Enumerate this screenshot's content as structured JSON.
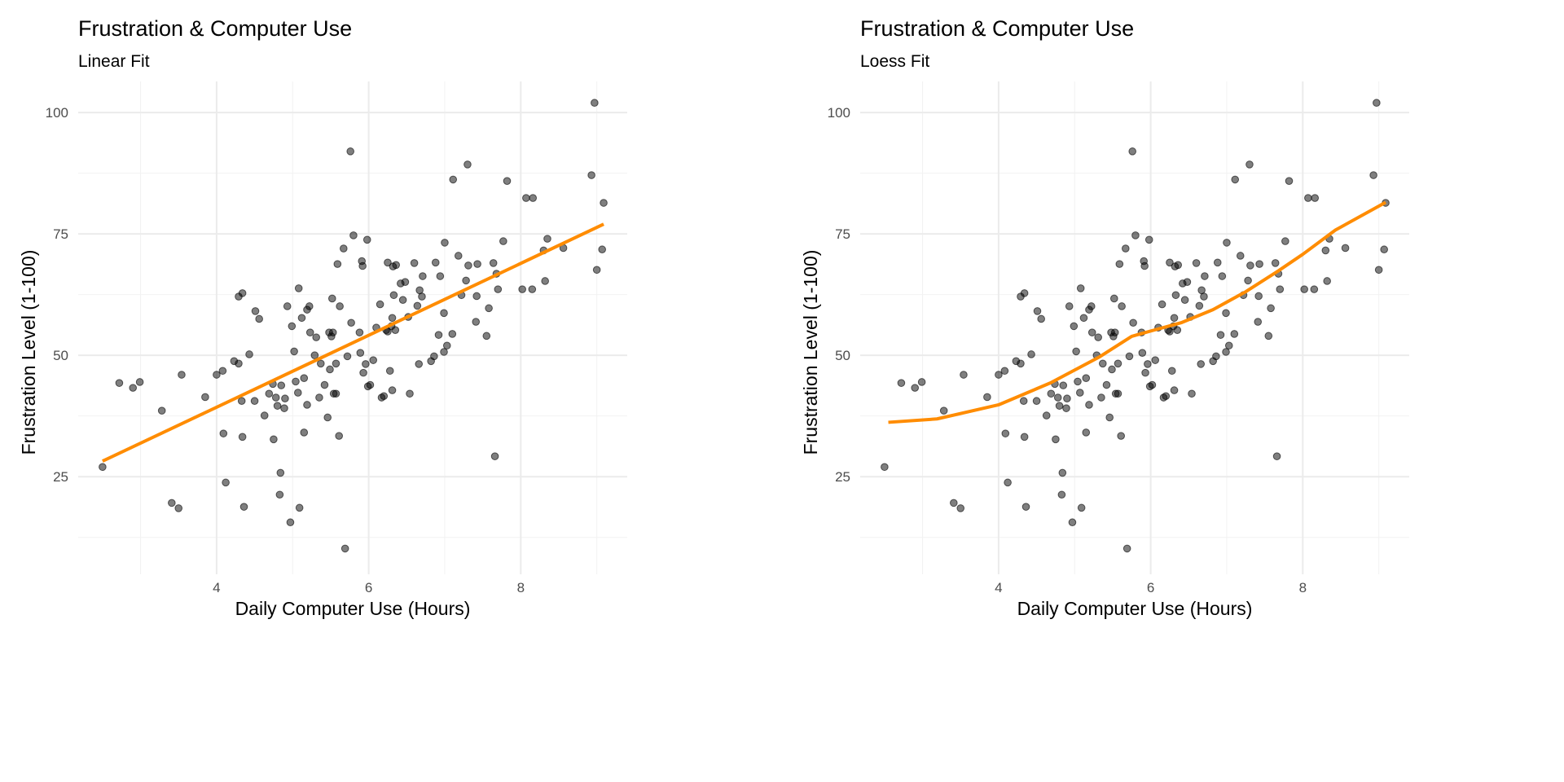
{
  "chart_data": [
    {
      "type": "scatter",
      "title": "Frustration & Computer Use",
      "subtitle": "Linear Fit",
      "xlabel": "Daily Computer Use (Hours)",
      "ylabel": "Frustration Level (1-100)",
      "xlim": [
        2.18,
        9.4
      ],
      "ylim": [
        4.9,
        106.4
      ],
      "xticks": [
        4,
        6,
        8
      ],
      "xtick_labels": [
        "4",
        "6",
        "8"
      ],
      "yticks": [
        25,
        50,
        75,
        100
      ],
      "ytick_labels": [
        "25",
        "50",
        "75",
        "100"
      ],
      "grid": true,
      "fit": {
        "method": "linear",
        "color": "#FF8C00",
        "x": [
          2.5,
          9.09
        ],
        "y": [
          28.2,
          77.0
        ]
      }
    },
    {
      "type": "scatter",
      "title": "Frustration & Computer Use",
      "subtitle": "Loess Fit",
      "xlabel": "Daily Computer Use (Hours)",
      "ylabel": "Frustration Level (1-100)",
      "xlim": [
        2.18,
        9.4
      ],
      "ylim": [
        4.9,
        106.4
      ],
      "xticks": [
        4,
        6,
        8
      ],
      "xtick_labels": [
        "4",
        "6",
        "8"
      ],
      "yticks": [
        25,
        50,
        75,
        100
      ],
      "ytick_labels": [
        "25",
        "50",
        "75",
        "100"
      ],
      "grid": true,
      "fit": {
        "method": "loess",
        "color": "#FF8C00",
        "x": [
          2.55,
          3.19,
          4.0,
          4.68,
          5.33,
          5.75,
          6.0,
          6.4,
          6.82,
          7.25,
          7.68,
          8.0,
          8.43,
          9.09
        ],
        "y": [
          36.2,
          36.9,
          39.8,
          44.3,
          49.7,
          53.9,
          55.0,
          56.7,
          59.4,
          63.1,
          67.4,
          70.8,
          75.8,
          81.5
        ]
      }
    }
  ],
  "points": [
    [
      2.5,
      27
    ],
    [
      2.72,
      44.3
    ],
    [
      2.9,
      43.3
    ],
    [
      2.99,
      44.5
    ],
    [
      3.28,
      38.6
    ],
    [
      3.41,
      19.6
    ],
    [
      3.5,
      18.5
    ],
    [
      3.54,
      46
    ],
    [
      3.85,
      41.4
    ],
    [
      4.0,
      46
    ],
    [
      4.08,
      46.8
    ],
    [
      4.09,
      33.9
    ],
    [
      4.12,
      23.8
    ],
    [
      4.23,
      48.8
    ],
    [
      4.29,
      48.3
    ],
    [
      4.29,
      62.1
    ],
    [
      4.34,
      62.8
    ],
    [
      4.33,
      40.6
    ],
    [
      4.34,
      33.2
    ],
    [
      4.36,
      18.8
    ],
    [
      4.43,
      50.2
    ],
    [
      4.5,
      40.6
    ],
    [
      4.51,
      59.1
    ],
    [
      4.56,
      57.5
    ],
    [
      4.63,
      37.6
    ],
    [
      4.69,
      42.1
    ],
    [
      4.74,
      44.1
    ],
    [
      4.75,
      32.7
    ],
    [
      4.78,
      41.3
    ],
    [
      4.8,
      39.6
    ],
    [
      4.83,
      21.3
    ],
    [
      4.84,
      25.8
    ],
    [
      4.85,
      43.8
    ],
    [
      4.89,
      39.1
    ],
    [
      4.9,
      41.1
    ],
    [
      4.93,
      60.1
    ],
    [
      4.97,
      15.6
    ],
    [
      4.99,
      56
    ],
    [
      5.02,
      50.8
    ],
    [
      5.04,
      44.6
    ],
    [
      5.07,
      42.3
    ],
    [
      5.08,
      63.8
    ],
    [
      5.09,
      18.6
    ],
    [
      5.12,
      57.7
    ],
    [
      5.15,
      45.3
    ],
    [
      5.15,
      34.1
    ],
    [
      5.19,
      39.8
    ],
    [
      5.19,
      59.4
    ],
    [
      5.22,
      60.1
    ],
    [
      5.23,
      54.7
    ],
    [
      5.29,
      50
    ],
    [
      5.31,
      53.7
    ],
    [
      5.35,
      41.3
    ],
    [
      5.37,
      48.3
    ],
    [
      5.42,
      43.9
    ],
    [
      5.46,
      37.2
    ],
    [
      5.48,
      54.7
    ],
    [
      5.49,
      47.1
    ],
    [
      5.51,
      53.9
    ],
    [
      5.52,
      61.7
    ],
    [
      5.53,
      54.7
    ],
    [
      5.54,
      42.1
    ],
    [
      5.57,
      42.1
    ],
    [
      5.57,
      48.3
    ],
    [
      5.59,
      68.8
    ],
    [
      5.61,
      33.4
    ],
    [
      5.62,
      60.1
    ],
    [
      5.67,
      72
    ],
    [
      5.69,
      10.2
    ],
    [
      5.72,
      49.8
    ],
    [
      5.76,
      92
    ],
    [
      5.77,
      56.7
    ],
    [
      5.8,
      74.7
    ],
    [
      5.88,
      54.7
    ],
    [
      5.89,
      50.5
    ],
    [
      5.91,
      69.4
    ],
    [
      5.92,
      68.4
    ],
    [
      5.93,
      46.4
    ],
    [
      5.96,
      48.2
    ],
    [
      5.98,
      73.8
    ],
    [
      5.99,
      43.6
    ],
    [
      6.02,
      43.9
    ],
    [
      6.06,
      49
    ],
    [
      6.1,
      55.7
    ],
    [
      6.15,
      60.5
    ],
    [
      6.17,
      41.3
    ],
    [
      6.2,
      41.6
    ],
    [
      6.23,
      55.2
    ],
    [
      6.25,
      69.1
    ],
    [
      6.25,
      54.9
    ],
    [
      6.28,
      46.8
    ],
    [
      6.3,
      56
    ],
    [
      6.31,
      42.8
    ],
    [
      6.31,
      57.7
    ],
    [
      6.33,
      62.4
    ],
    [
      6.35,
      55.2
    ],
    [
      6.32,
      68.3
    ],
    [
      6.36,
      68.6
    ],
    [
      6.42,
      64.8
    ],
    [
      6.45,
      61.4
    ],
    [
      6.48,
      65.1
    ],
    [
      6.52,
      57.9
    ],
    [
      6.54,
      42.1
    ],
    [
      6.6,
      69
    ],
    [
      6.64,
      60.2
    ],
    [
      6.66,
      48.2
    ],
    [
      6.67,
      63.4
    ],
    [
      6.7,
      62.1
    ],
    [
      6.71,
      66.3
    ],
    [
      6.82,
      48.8
    ],
    [
      6.86,
      49.8
    ],
    [
      6.88,
      69.1
    ],
    [
      6.92,
      54.2
    ],
    [
      6.94,
      66.3
    ],
    [
      6.99,
      58.7
    ],
    [
      6.99,
      50.7
    ],
    [
      7.0,
      73.2
    ],
    [
      7.03,
      52
    ],
    [
      7.1,
      54.4
    ],
    [
      7.11,
      86.2
    ],
    [
      7.18,
      70.5
    ],
    [
      7.22,
      62.4
    ],
    [
      7.28,
      65.4
    ],
    [
      7.3,
      89.3
    ],
    [
      7.31,
      68.5
    ],
    [
      7.43,
      68.8
    ],
    [
      7.42,
      62.2
    ],
    [
      7.41,
      56.9
    ],
    [
      7.55,
      54
    ],
    [
      7.58,
      59.7
    ],
    [
      7.64,
      69
    ],
    [
      7.66,
      29.2
    ],
    [
      7.68,
      66.8
    ],
    [
      7.7,
      63.6
    ],
    [
      7.77,
      73.5
    ],
    [
      7.82,
      85.9
    ],
    [
      8.02,
      63.6
    ],
    [
      8.07,
      82.4
    ],
    [
      8.16,
      82.4
    ],
    [
      8.15,
      63.6
    ],
    [
      8.3,
      71.6
    ],
    [
      8.32,
      65.3
    ],
    [
      8.35,
      74
    ],
    [
      8.56,
      72.1
    ],
    [
      8.93,
      87.1
    ],
    [
      8.97,
      102
    ],
    [
      9.0,
      67.6
    ],
    [
      9.07,
      71.8
    ],
    [
      9.09,
      81.4
    ]
  ]
}
